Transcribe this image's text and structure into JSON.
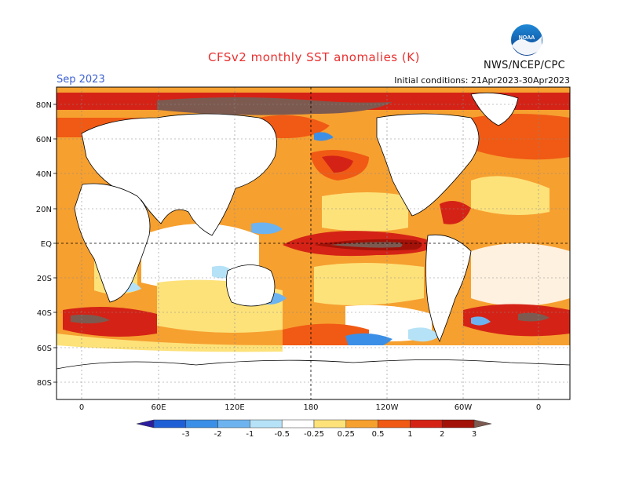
{
  "header": {
    "title": "CFSv2 monthly SST anomalies (K)",
    "month_label": "Sep 2023",
    "initial_conditions": "Initial conditions: 21Apr2023-30Apr2023",
    "agency": "NWS/NCEP/CPC",
    "logo_text": "NOAA"
  },
  "map": {
    "lat_labels": [
      "80N",
      "60N",
      "40N",
      "20N",
      "EQ",
      "20S",
      "40S",
      "60S",
      "80S"
    ],
    "lon_labels": [
      "0",
      "60E",
      "120E",
      "180",
      "120W",
      "60W",
      "0"
    ],
    "land_color": "#ffffff",
    "coast_color": "#000000"
  },
  "colorbar": {
    "tick_labels": [
      "-3",
      "-2",
      "-1",
      "-0.5",
      "-0.25",
      "0.25",
      "0.5",
      "1",
      "2",
      "3"
    ],
    "colors": [
      "#2a1e9e",
      "#1f5fd6",
      "#3c8fe6",
      "#6db3f0",
      "#b6e2f7",
      "#ffffff",
      "#fde27a",
      "#f6a030",
      "#f05a14",
      "#d42316",
      "#a31208",
      "#7d5a50"
    ]
  }
}
